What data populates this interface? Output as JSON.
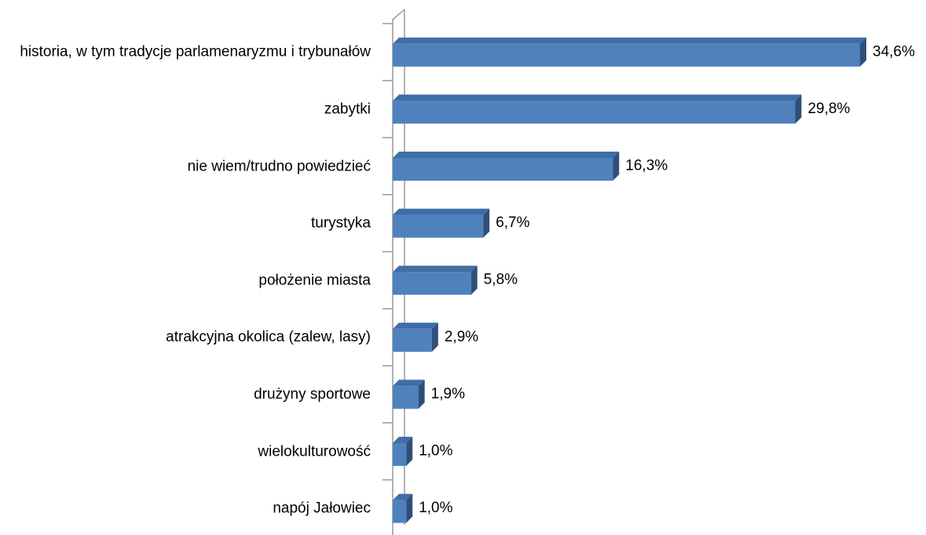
{
  "chart_data": {
    "type": "bar",
    "orientation": "horizontal",
    "color": "#4f81bd",
    "categories": [
      "historia, w tym tradycje parlamenaryzmu i trybunałów",
      "zabytki",
      "nie wiem/trudno powiedzieć",
      "turystyka",
      "położenie miasta",
      "atrakcyjna okolica (zalew, lasy)",
      "drużyny sportowe",
      "wielokulturowość",
      "napój Jałowiec"
    ],
    "values": [
      34.6,
      29.8,
      16.3,
      6.7,
      5.8,
      2.9,
      1.9,
      1.0,
      1.0
    ],
    "value_labels": [
      "34,6%",
      "29,8%",
      "16,3%",
      "6,7%",
      "5,8%",
      "2,9%",
      "1,9%",
      "1,0%",
      "1,0%"
    ]
  }
}
